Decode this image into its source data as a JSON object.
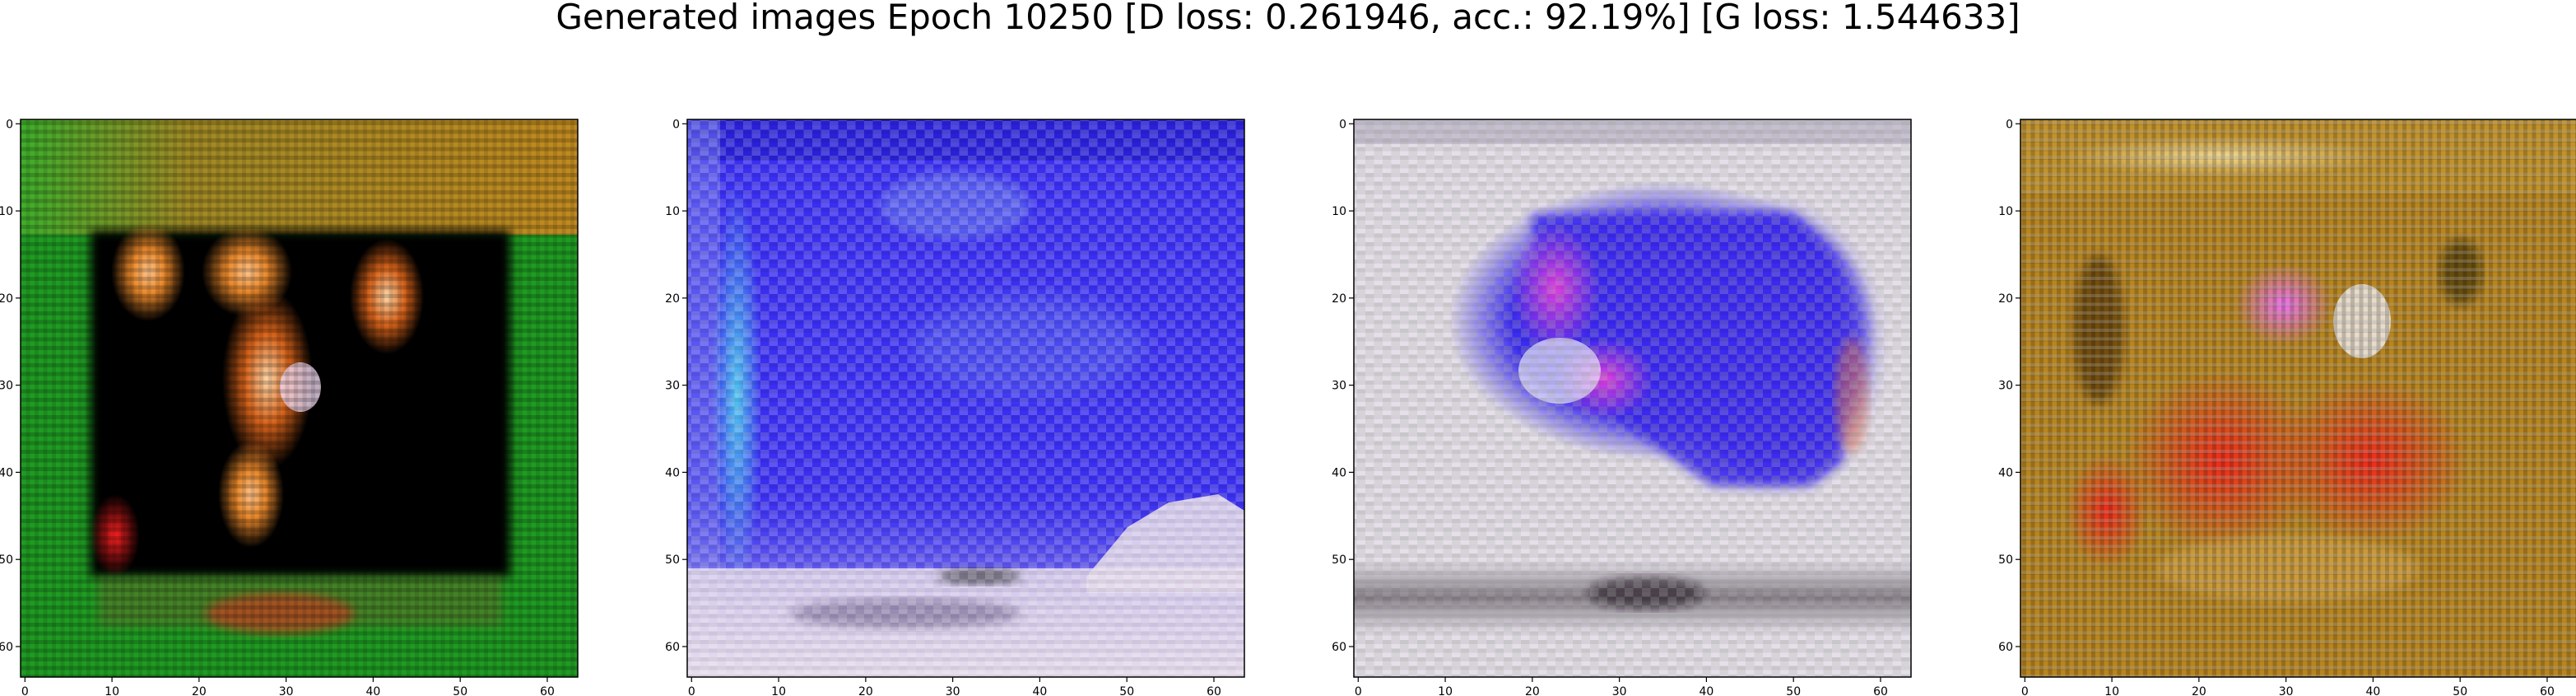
{
  "figure": {
    "title": "Generated images Epoch 10250 [D loss: 0.261946, acc.: 92.19%] [G loss: 1.544633]"
  },
  "chart_data": {
    "type": "heatmap",
    "grid": false,
    "panels": [
      {
        "name": "",
        "content": "generated image 1",
        "dominant_colors": [
          "#1e9a1e",
          "#000000",
          "#e8872a",
          "#b8901e"
        ],
        "xlim": [
          0,
          63
        ],
        "ylim": [
          63,
          0
        ],
        "xticks": [
          0,
          10,
          20,
          30,
          40,
          50,
          60
        ],
        "yticks": [
          0,
          10,
          20,
          30,
          40,
          50,
          60
        ]
      },
      {
        "name": "",
        "content": "generated image 2",
        "dominant_colors": [
          "#3a2cf0",
          "#2f2fe0",
          "#e8e0f0",
          "#6a7ae8"
        ],
        "xlim": [
          0,
          63
        ],
        "ylim": [
          63,
          0
        ],
        "xticks": [
          0,
          10,
          20,
          30,
          40,
          50,
          60
        ],
        "yticks": [
          0,
          10,
          20,
          30,
          40,
          50,
          60
        ]
      },
      {
        "name": "",
        "content": "generated image 3",
        "dominant_colors": [
          "#e6e1ea",
          "#3a28f0",
          "#d24ad8",
          "#9b9aa0"
        ],
        "xlim": [
          0,
          63
        ],
        "ylim": [
          63,
          0
        ],
        "xticks": [
          0,
          10,
          20,
          30,
          40,
          50,
          60
        ],
        "yticks": [
          0,
          10,
          20,
          30,
          40,
          50,
          60
        ]
      },
      {
        "name": "",
        "content": "generated image 4",
        "dominant_colors": [
          "#b9831c",
          "#e0381e",
          "#d6a640",
          "#2a2010"
        ],
        "xlim": [
          0,
          63
        ],
        "ylim": [
          63,
          0
        ],
        "xticks": [
          0,
          10,
          20,
          30,
          40,
          50,
          60
        ],
        "yticks": [
          0,
          10,
          20,
          30,
          40,
          50,
          60
        ]
      }
    ]
  }
}
